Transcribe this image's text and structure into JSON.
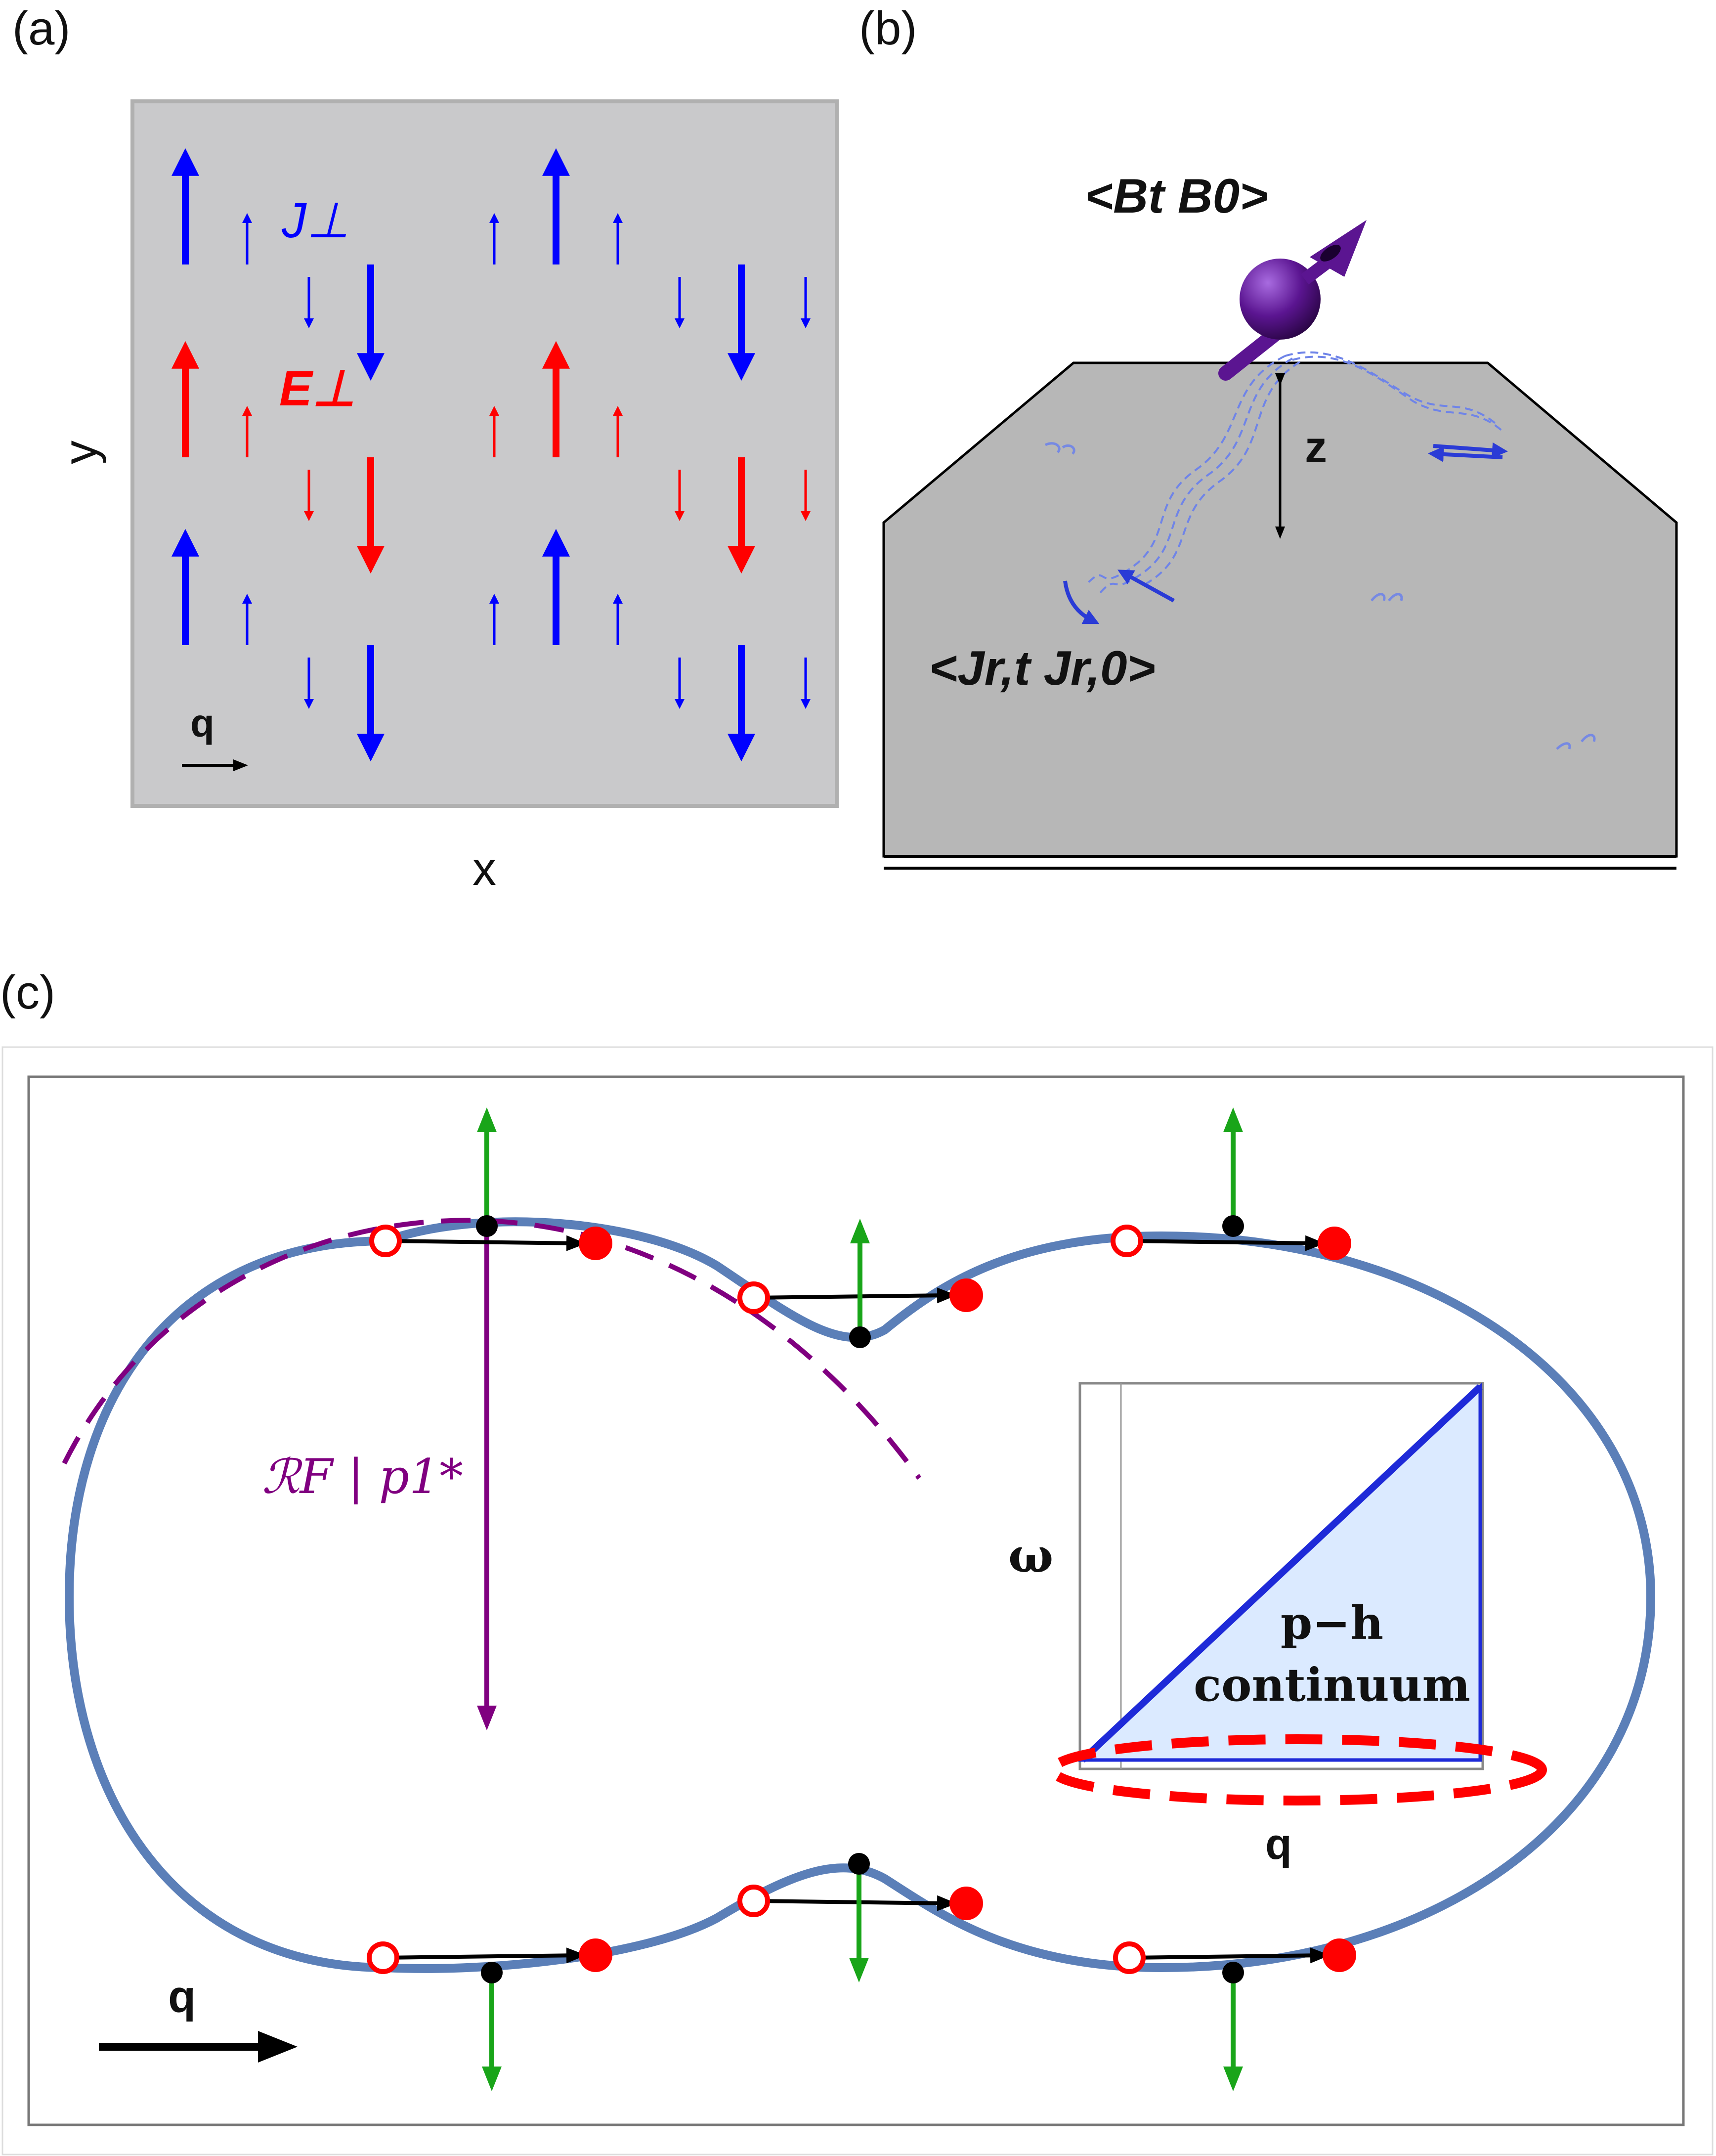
{
  "panel_a": {
    "label": "(a)",
    "j_label": "J⊥",
    "e_label": "E⊥",
    "y_axis": "y",
    "x_axis": "x",
    "q_label": "q",
    "colors": {
      "background": "#c9c9cb",
      "current": "#0000ff",
      "field": "#ff0000"
    }
  },
  "panel_b": {
    "label": "(b)",
    "bb_correlator": "<Bt B0>",
    "jj_correlator": "<Jr,t Jr,0>",
    "z_label": "z",
    "colors": {
      "spin": "#5b1591",
      "slab": "#b7b7b7",
      "current": "#2a3bd6"
    }
  },
  "panel_c": {
    "label": "(c)",
    "rf_label": "ℛF | p1*",
    "q_label": "q",
    "inset": {
      "omega_label": "ω",
      "q_label": "q",
      "continuum_line1": "p−h",
      "continuum_line2": "continuum"
    },
    "colors": {
      "fermi_surface": "#5b7fb8",
      "curvature": "#800080",
      "velocity": "#19a519",
      "hole": "#ff0000",
      "inset_fill": "#dbeaff"
    }
  }
}
